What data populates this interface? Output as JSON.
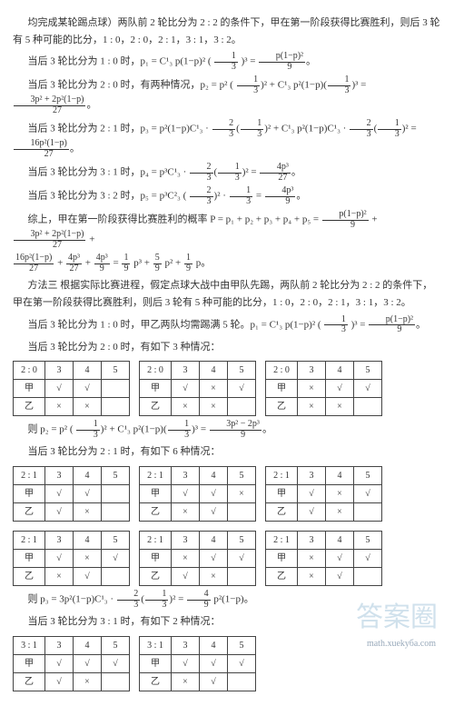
{
  "paragraphs": {
    "intro": "均完成某轮踢点球）两队前 2 轮比分为 2 : 2 的条件下，甲在第一阶段获得比赛胜利，则后 3 轮有 5 种可能的比分，1 : 0，2 : 0，2 : 1，3 : 1，3 : 2。",
    "r1_0_pre": "当后 3 轮比分为 1 : 0 时，p₁ = C¹₃ p(1−p)² (",
    "r1_0_post": ")³ = ",
    "r2_0_full": "当后 3 轮比分为 2 : 0 时，有两种情况，p₂ = p² (",
    "r2_1_full": "当后 3 轮比分为 2 : 1 时，p₃ = p²(1−p)C¹₃ · ",
    "r3_1_full": "当后 3 轮比分为 3 : 1 时，p₄ = p³C¹₃ · ",
    "r3_2_full": "当后 3 轮比分为 3 : 2 时，p₅ = p³C²₃ (",
    "sum_pre": "综上，甲在第一阶段获得比赛胜利的概率 P = p₁ + p₂ + p₃ + p₄ + p₅ = ",
    "sum_tail": " p³ + ",
    "method3a": "方法三   根据实际比赛进程，假定点球大战中由甲队先踢，两队前 2 轮比分为 2 : 2 的条件下，甲在第一阶段获得比赛胜利，则后 3 轮有 5 种可能的比分，1 : 0，2 : 0，2 : 1，3 : 1，3 : 2。",
    "m3_10_pre": "当后 3 轮比分为 1 : 0 时，甲乙两队均需踢满 5 轮。p₁ = C¹₃ p(1−p)² (",
    "m3_10_post": ")³ = ",
    "m3_20_head": "当后 3 轮比分为 2 : 0 时，有如下 3 种情况：",
    "p2_formula_pre": "则 p₂ = p² (",
    "m3_21_head": "当后 3 轮比分为 2 : 1 时，有如下 6 种情况：",
    "p3_formula_pre": "则 p₃ = 3p²(1−p)C¹₃ · ",
    "m3_31_head": "当后 3 轮比分为 3 : 1 时，有如下 2 种情况："
  },
  "fracs": {
    "one_third": {
      "num": "1",
      "den": "3"
    },
    "two_third": {
      "num": "2",
      "den": "3"
    },
    "p1mpSq_9": {
      "num": "p(1−p)²",
      "den": "9"
    },
    "poly_27": {
      "num": "3p² + 2p²(1−p)",
      "den": "27"
    },
    "sixteen_27": {
      "num": "16p²(1−p)",
      "den": "27"
    },
    "fourp3_27": {
      "num": "4p³",
      "den": "27"
    },
    "fourp3_9": {
      "num": "4p³",
      "den": "9"
    },
    "sixteen_27b": {
      "num": "16p²(1−p)",
      "den": "27"
    },
    "four_27": {
      "num": "4p³",
      "den": "27"
    },
    "one_9": {
      "num": "1",
      "den": "9"
    },
    "five_9": {
      "num": "5",
      "den": "9"
    },
    "one_9b": {
      "num": "1",
      "den": "9"
    },
    "three_9": {
      "num": "3p² − 2p³",
      "den": "9"
    },
    "four_9": {
      "num": "4",
      "den": "9"
    }
  },
  "table_labels": {
    "score20": "2 : 0",
    "score21": "2 : 1",
    "score31": "3 : 1",
    "col3": "3",
    "col4": "4",
    "col5": "5",
    "jia": "甲",
    "yi": "乙"
  },
  "marks": {
    "hit": "√",
    "miss": "×",
    "blank": ""
  },
  "tables_20": [
    {
      "jia": [
        "hit",
        "hit",
        "blank"
      ],
      "yi": [
        "miss",
        "miss",
        "blank"
      ]
    },
    {
      "jia": [
        "hit",
        "miss",
        "hit"
      ],
      "yi": [
        "miss",
        "miss",
        "blank"
      ]
    },
    {
      "jia": [
        "miss",
        "hit",
        "hit"
      ],
      "yi": [
        "miss",
        "miss",
        "blank"
      ]
    }
  ],
  "tables_21": [
    {
      "jia": [
        "hit",
        "hit",
        "blank"
      ],
      "yi": [
        "hit",
        "miss",
        "blank"
      ]
    },
    {
      "jia": [
        "hit",
        "hit",
        "miss"
      ],
      "yi": [
        "miss",
        "hit",
        "blank"
      ]
    },
    {
      "jia": [
        "hit",
        "miss",
        "hit"
      ],
      "yi": [
        "hit",
        "miss",
        "blank"
      ]
    },
    {
      "jia": [
        "hit",
        "miss",
        "hit"
      ],
      "yi": [
        "miss",
        "hit",
        "blank"
      ]
    },
    {
      "jia": [
        "miss",
        "hit",
        "hit"
      ],
      "yi": [
        "hit",
        "miss",
        "blank"
      ]
    },
    {
      "jia": [
        "miss",
        "hit",
        "hit"
      ],
      "yi": [
        "miss",
        "hit",
        "blank"
      ]
    }
  ],
  "tables_31": [
    {
      "jia": [
        "hit",
        "hit",
        "hit"
      ],
      "yi": [
        "hit",
        "miss",
        "blank"
      ]
    },
    {
      "jia": [
        "hit",
        "hit",
        "hit"
      ],
      "yi": [
        "miss",
        "hit",
        "blank"
      ]
    }
  ],
  "watermark": "答案圈",
  "footer": "math.xuekубa.com"
}
